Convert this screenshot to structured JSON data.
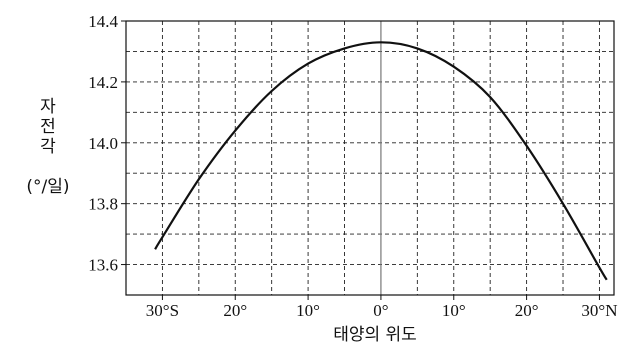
{
  "chart_data": {
    "type": "line",
    "title": "",
    "xlabel": "태양의 위도",
    "ylabel": [
      "자",
      "전",
      "각",
      "(°/일)"
    ],
    "xlim": [
      -35,
      32
    ],
    "ylim": [
      13.5,
      14.4
    ],
    "x_ticks": [
      {
        "value": -30,
        "label": "30°S"
      },
      {
        "value": -20,
        "label": "20°"
      },
      {
        "value": -10,
        "label": "10°"
      },
      {
        "value": 0,
        "label": "0°"
      },
      {
        "value": 10,
        "label": "10°"
      },
      {
        "value": 20,
        "label": "20°"
      },
      {
        "value": 30,
        "label": "30°N"
      }
    ],
    "y_ticks": [
      {
        "value": 13.6,
        "label": "13.6"
      },
      {
        "value": 13.8,
        "label": "13.8"
      },
      {
        "value": 14.0,
        "label": "14.0"
      },
      {
        "value": 14.2,
        "label": "14.2"
      },
      {
        "value": 14.4,
        "label": "14.4"
      }
    ],
    "grid": true,
    "series": [
      {
        "x": [
          -31,
          -30,
          -25,
          -20,
          -15,
          -10,
          -5,
          0,
          5,
          10,
          15,
          20,
          25,
          30,
          31
        ],
        "values": [
          13.65,
          13.69,
          13.88,
          14.04,
          14.17,
          14.26,
          14.31,
          14.33,
          14.31,
          14.25,
          14.15,
          13.99,
          13.8,
          13.59,
          13.55
        ]
      }
    ]
  }
}
